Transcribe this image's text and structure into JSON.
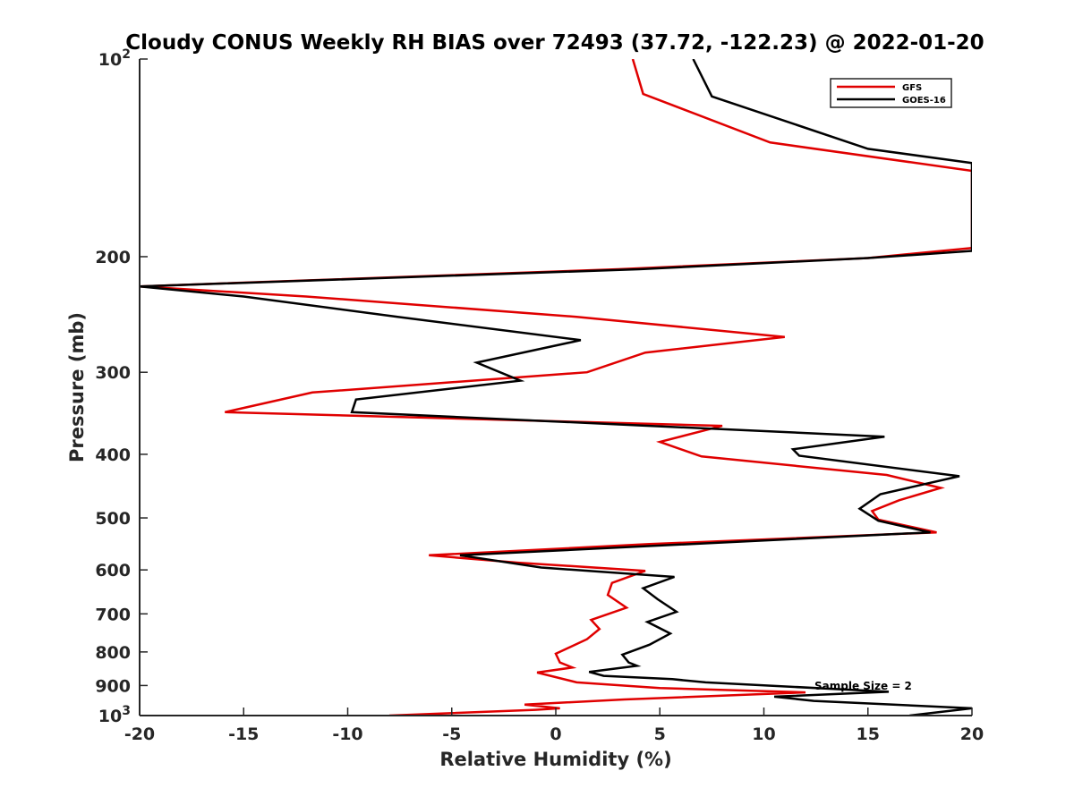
{
  "chart_data": {
    "type": "line",
    "title": "Cloudy CONUS Weekly RH BIAS over 72493 (37.72, -122.23) @ 2022-01-20",
    "xlabel": "Relative Humidity (%)",
    "ylabel": "Pressure (mb)",
    "xlim": [
      -20,
      20
    ],
    "ylim": [
      100,
      1000
    ],
    "y_scale": "log",
    "y_reversed": true,
    "x_ticks": [
      -20,
      -15,
      -10,
      -5,
      0,
      5,
      10,
      15,
      20
    ],
    "x_tick_labels": [
      "-20",
      "-15",
      "-10",
      "-5",
      "0",
      "5",
      "10",
      "15",
      "20"
    ],
    "y_ticks": [
      100,
      200,
      300,
      400,
      500,
      600,
      700,
      800,
      900,
      1000
    ],
    "y_tick_labels": [
      {
        "base": "10",
        "exp": "2"
      },
      {
        "base": "200",
        "exp": ""
      },
      {
        "base": "300",
        "exp": ""
      },
      {
        "base": "400",
        "exp": ""
      },
      {
        "base": "500",
        "exp": ""
      },
      {
        "base": "600",
        "exp": ""
      },
      {
        "base": "700",
        "exp": ""
      },
      {
        "base": "800",
        "exp": ""
      },
      {
        "base": "900",
        "exp": ""
      },
      {
        "base": "10",
        "exp": "3"
      }
    ],
    "grid": false,
    "legend_position": "top-right",
    "annotation": "Sample Size = 2",
    "series": [
      {
        "name": "GFS",
        "color": "#e00000",
        "points": [
          [
            3.7,
            100
          ],
          [
            4.2,
            113
          ],
          [
            10.3,
            134
          ],
          [
            20.0,
            148
          ],
          [
            20.0,
            194
          ],
          [
            15.0,
            201
          ],
          [
            3.0,
            209
          ],
          [
            -20.0,
            222
          ],
          [
            -12.0,
            230
          ],
          [
            -5.0,
            239
          ],
          [
            1.0,
            247
          ],
          [
            11.0,
            265
          ],
          [
            4.3,
            280
          ],
          [
            1.5,
            300
          ],
          [
            -11.7,
            322
          ],
          [
            -15.9,
            345
          ],
          [
            8.0,
            362
          ],
          [
            5.0,
            383
          ],
          [
            7.0,
            403
          ],
          [
            15.9,
            430
          ],
          [
            18.5,
            450
          ],
          [
            16.5,
            470
          ],
          [
            15.2,
            488
          ],
          [
            15.5,
            503
          ],
          [
            18.3,
            526
          ],
          [
            4.5,
            548
          ],
          [
            -6.1,
            570
          ],
          [
            -1.8,
            585
          ],
          [
            4.3,
            602
          ],
          [
            2.7,
            628
          ],
          [
            2.5,
            655
          ],
          [
            3.4,
            685
          ],
          [
            1.7,
            715
          ],
          [
            2.1,
            738
          ],
          [
            1.5,
            765
          ],
          [
            0.0,
            805
          ],
          [
            0.2,
            830
          ],
          [
            0.8,
            845
          ],
          [
            -0.9,
            860
          ],
          [
            1.0,
            890
          ],
          [
            5.0,
            908
          ],
          [
            12.0,
            922
          ],
          [
            3.3,
            945
          ],
          [
            -1.5,
            962
          ],
          [
            0.2,
            975
          ],
          [
            -1.0,
            980
          ],
          [
            -8.0,
            1000
          ]
        ]
      },
      {
        "name": "GOES-16",
        "color": "#000000",
        "points": [
          [
            6.6,
            100
          ],
          [
            7.5,
            114
          ],
          [
            15.0,
            137
          ],
          [
            20.0,
            144
          ],
          [
            20.0,
            196
          ],
          [
            15.0,
            201
          ],
          [
            4.0,
            209
          ],
          [
            -20.0,
            222
          ],
          [
            -15.0,
            230
          ],
          [
            -7.6,
            247
          ],
          [
            1.2,
            268
          ],
          [
            -3.8,
            290
          ],
          [
            -1.7,
            309
          ],
          [
            -9.6,
            330
          ],
          [
            -9.8,
            345
          ],
          [
            15.8,
            376
          ],
          [
            11.4,
            393
          ],
          [
            11.7,
            402
          ],
          [
            19.4,
            432
          ],
          [
            15.6,
            460
          ],
          [
            14.6,
            484
          ],
          [
            15.5,
            505
          ],
          [
            18.0,
            526
          ],
          [
            -4.6,
            570
          ],
          [
            -0.7,
            595
          ],
          [
            5.7,
            615
          ],
          [
            4.2,
            640
          ],
          [
            4.9,
            665
          ],
          [
            5.8,
            695
          ],
          [
            4.4,
            720
          ],
          [
            5.5,
            750
          ],
          [
            4.5,
            780
          ],
          [
            3.2,
            808
          ],
          [
            3.5,
            830
          ],
          [
            3.9,
            840
          ],
          [
            1.6,
            858
          ],
          [
            2.3,
            870
          ],
          [
            5.6,
            880
          ],
          [
            7.2,
            890
          ],
          [
            16.0,
            920
          ],
          [
            10.5,
            936
          ],
          [
            12.4,
            950
          ],
          [
            20.0,
            975
          ],
          [
            17.0,
            1000
          ]
        ]
      }
    ]
  }
}
